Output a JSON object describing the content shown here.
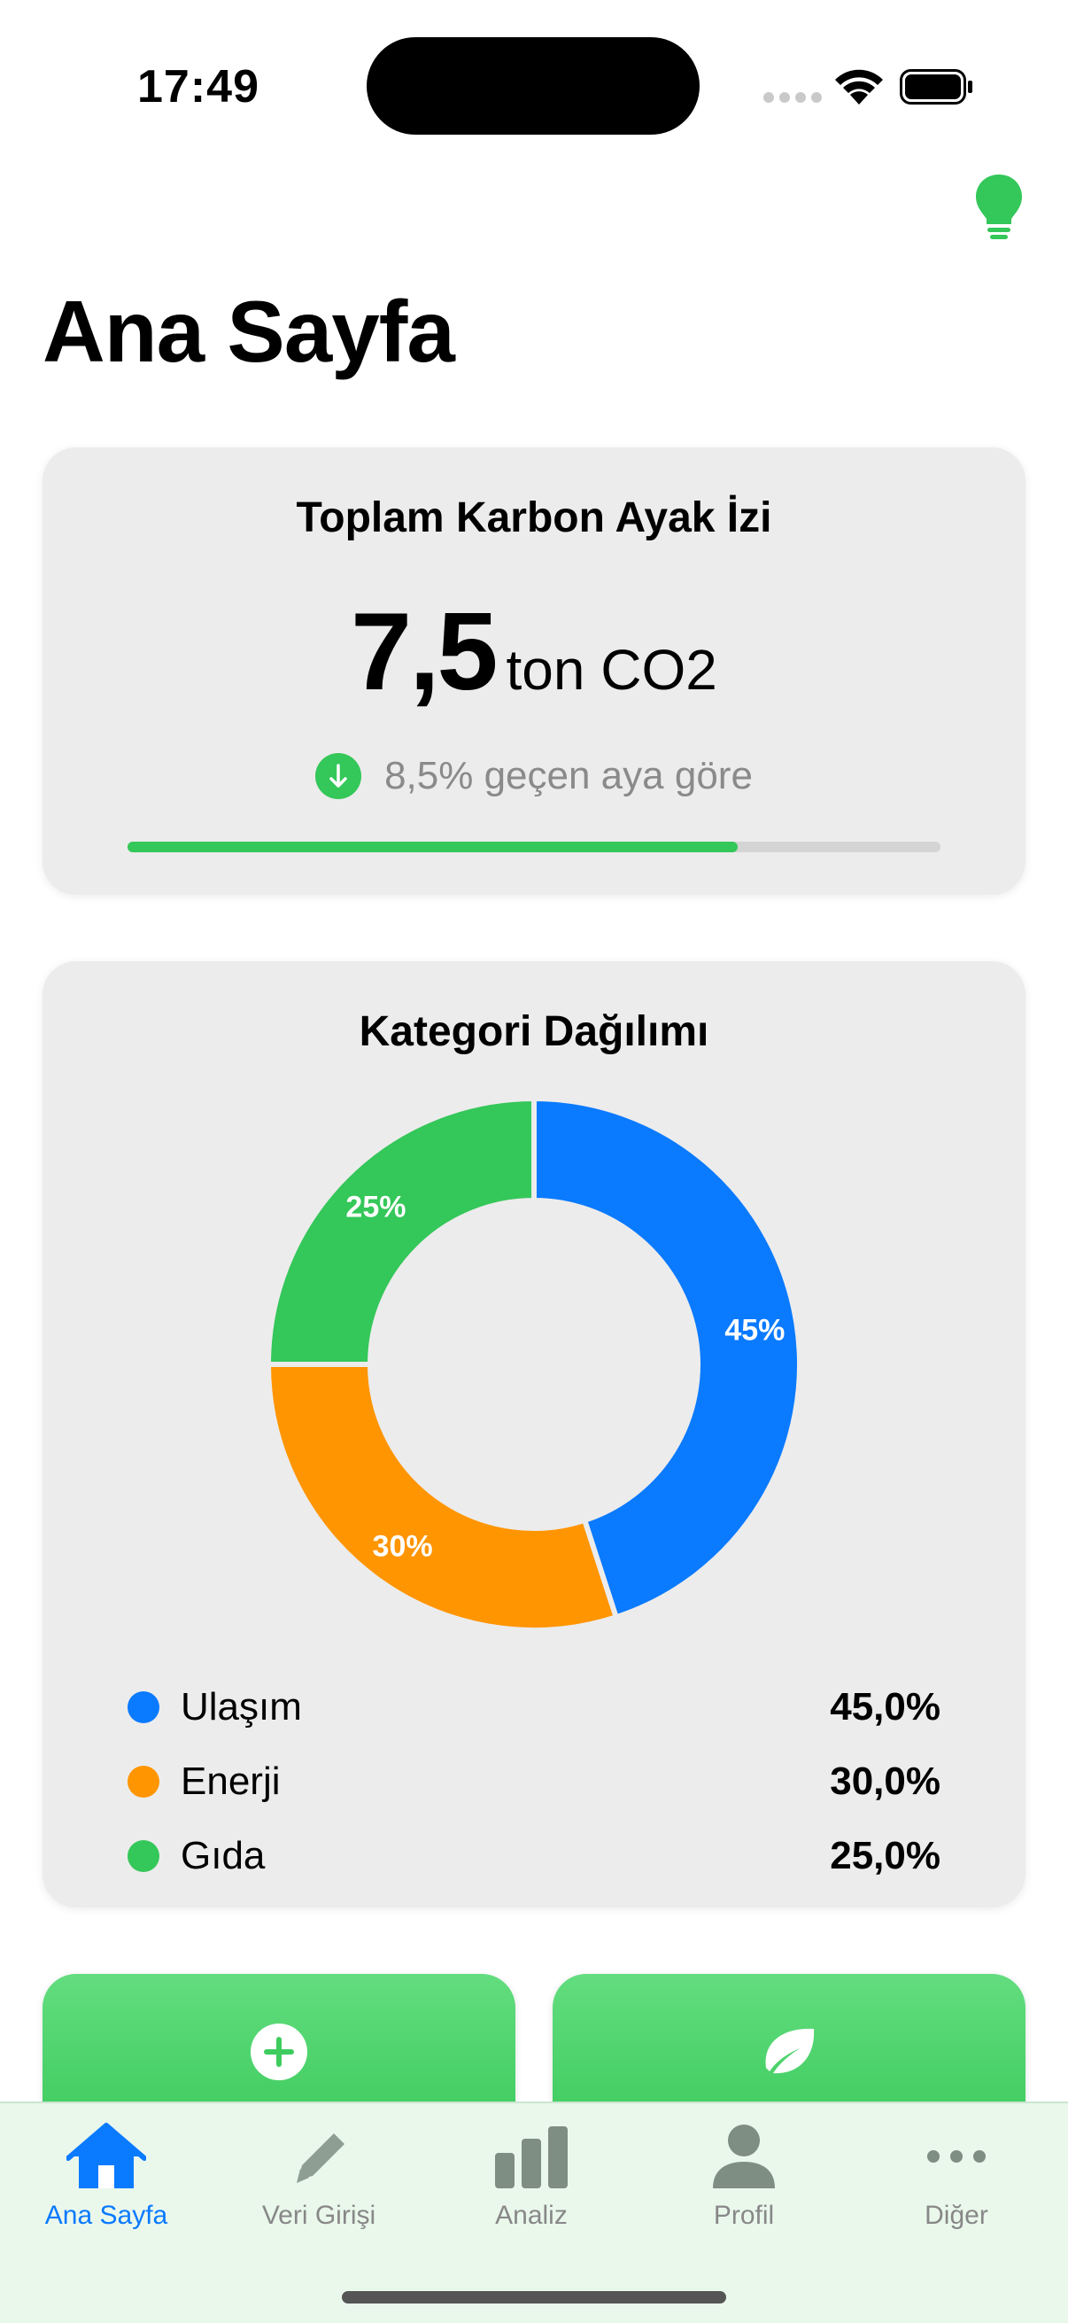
{
  "status_bar": {
    "time": "17:49"
  },
  "header": {
    "title": "Ana Sayfa",
    "icon": "lightbulb-icon"
  },
  "total_card": {
    "title": "Toplam Karbon Ayak İzi",
    "value": "7,5",
    "unit": "ton CO2",
    "change_text": "8,5% geçen aya göre",
    "progress_fraction": 0.75,
    "accent": "#34c759"
  },
  "category_card": {
    "title": "Kategori Dağılımı",
    "legend": [
      {
        "label": "Ulaşım",
        "value": "45,0%",
        "color": "#0a7aff"
      },
      {
        "label": "Enerji",
        "value": "30,0%",
        "color": "#ff9500"
      },
      {
        "label": "Gıda",
        "value": "25,0%",
        "color": "#34c759"
      }
    ]
  },
  "chart_data": {
    "type": "pie",
    "categories": [
      "Ulaşım",
      "Enerji",
      "Gıda"
    ],
    "values": [
      45,
      30,
      25
    ],
    "labels": [
      "45%",
      "30%",
      "25%"
    ],
    "colors": [
      "#0a7aff",
      "#ff9500",
      "#34c759"
    ]
  },
  "actions": [
    {
      "icon": "plus-circle-icon"
    },
    {
      "icon": "leaf-icon"
    }
  ],
  "tabbar": {
    "tabs": [
      {
        "label": "Ana Sayfa",
        "icon": "house-icon",
        "active": true
      },
      {
        "label": "Veri Girişi",
        "icon": "pencil-icon"
      },
      {
        "label": "Analiz",
        "icon": "bar-chart-icon"
      },
      {
        "label": "Profil",
        "icon": "person-icon"
      },
      {
        "label": "Diğer",
        "icon": "ellipsis-icon"
      }
    ]
  }
}
